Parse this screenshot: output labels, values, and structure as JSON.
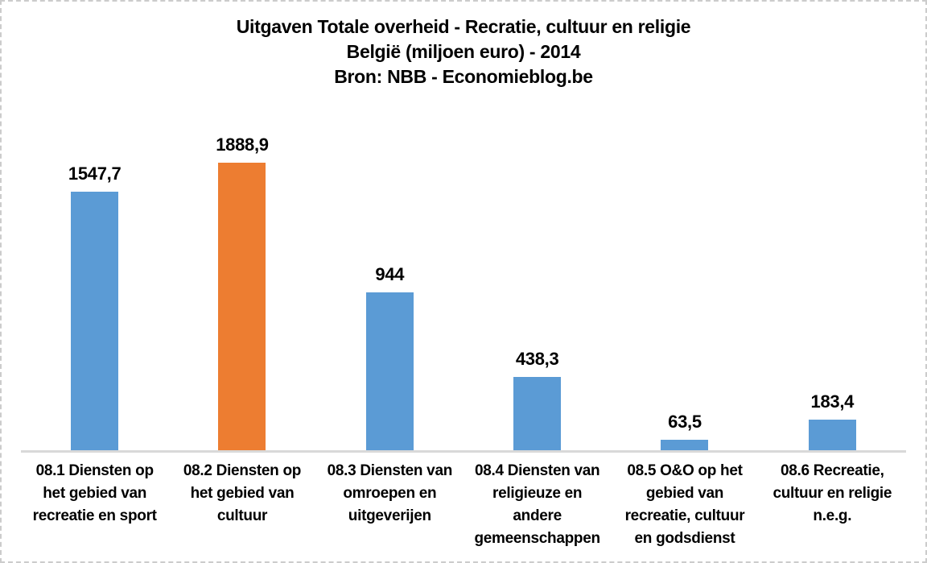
{
  "page": {
    "background": "#ffffff",
    "frame_border_color": "#cccccc"
  },
  "header": {
    "title": "Uitgaven Totale overheid - Recratie, cultuur en religie",
    "subtitle": "België (miljoen euro) - 2014",
    "source": "Bron: NBB - Economieblog.be"
  },
  "chart_data": {
    "type": "bar",
    "title": "Uitgaven Totale overheid - Recratie, cultuur en religie",
    "subtitle": "België (miljoen euro) - 2014",
    "source": "Bron: NBB - Economieblog.be",
    "categories": [
      "08.1 Diensten op het gebied van recreatie en sport",
      "08.2 Diensten op het gebied van cultuur",
      "08.3 Diensten van omroepen en uitgeverijen",
      "08.4 Diensten van religieuze en andere gemeenschappen",
      "08.5 O&O op het gebied van recreatie, cultuur en godsdienst",
      "08.6 Recreatie, cultuur en religie n.e.g."
    ],
    "category_label_lines": [
      [
        "08.1 Diensten op",
        "het gebied van",
        "recreatie en sport"
      ],
      [
        "08.2 Diensten op",
        "het gebied van",
        "cultuur"
      ],
      [
        "08.3 Diensten van",
        "omroepen en",
        "uitgeverijen"
      ],
      [
        "08.4 Diensten van",
        "religieuze en",
        "andere",
        "gemeenschappen"
      ],
      [
        "08.5 O&O op het",
        "gebied van",
        "recreatie, cultuur",
        "en godsdienst"
      ],
      [
        "08.6 Recreatie,",
        "cultuur en religie",
        "n.e.g."
      ]
    ],
    "values": [
      1547.7,
      1888.9,
      944,
      438.3,
      63.5,
      183.4
    ],
    "value_labels": [
      "1547,7",
      "1888,9",
      "944",
      "438,3",
      "63,5",
      "183,4"
    ],
    "bar_colors": [
      "#5B9BD5",
      "#ED7D31",
      "#5B9BD5",
      "#5B9BD5",
      "#5B9BD5",
      "#5B9BD5"
    ],
    "default_bar_color": "#5B9BD5",
    "highlight_bar_color": "#ED7D31",
    "ylim": [
      0,
      1888.9
    ],
    "xlabel": "",
    "ylabel": "",
    "grid": false,
    "legend": false,
    "y_axis_visible": false,
    "axis_line_color": "#D9D9D9",
    "data_label_position": "above-bar"
  }
}
